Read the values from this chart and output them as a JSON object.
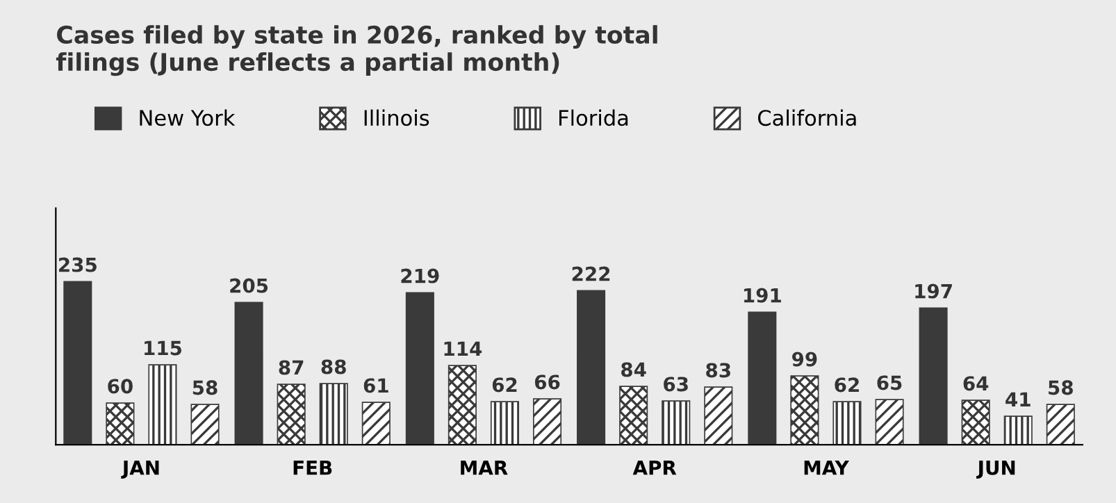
{
  "chart_data": {
    "type": "bar",
    "title": "Cases filed by state in 2026, ranked by total filings (June reflects a partial month)",
    "categories": [
      "JAN",
      "FEB",
      "MAR",
      "APR",
      "MAY",
      "JUN"
    ],
    "series": [
      {
        "name": "New York",
        "color": "#3a3a3a",
        "values": [
          235,
          205,
          219,
          222,
          191,
          197
        ]
      },
      {
        "name": "Illinois",
        "color": "#3a3a3a",
        "values": [
          60,
          87,
          114,
          84,
          99,
          64
        ]
      },
      {
        "name": "Florida",
        "color": "#3a3a3a",
        "values": [
          115,
          88,
          62,
          63,
          62,
          41
        ]
      },
      {
        "name": "California",
        "color": "#3a3a3a",
        "values": [
          58,
          61,
          66,
          83,
          65,
          58
        ]
      }
    ],
    "data_labels": true,
    "legend": "top left",
    "grid": false
  }
}
